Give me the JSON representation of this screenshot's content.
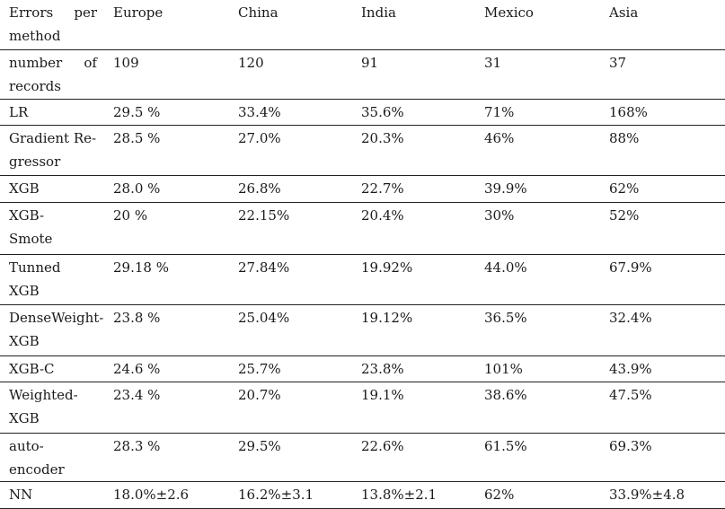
{
  "table": {
    "header": {
      "method_label_line1_left": "Errors",
      "method_label_line1_right": "per",
      "method_label_line2": "method",
      "columns": [
        "Europe",
        "China",
        "India",
        "Mexico",
        "Asia"
      ]
    },
    "records_row": {
      "label_line1_left": "number",
      "label_line1_right": "of",
      "label_line2": "records",
      "values": [
        "109",
        "120",
        "91",
        "31",
        "37"
      ]
    },
    "rows": [
      {
        "method_line1": "LR",
        "method_line2": "",
        "values": [
          "29.5 %",
          "33.4%",
          "35.6%",
          "71%",
          "168%"
        ]
      },
      {
        "method_line1": "Gradient Re-",
        "method_line2": "gressor",
        "values": [
          "28.5 %",
          "27.0%",
          "20.3%",
          "46%",
          "88%"
        ]
      },
      {
        "method_line1": "XGB",
        "method_line2": "",
        "values": [
          "28.0 %",
          "26.8%",
          "22.7%",
          "39.9%",
          "62%"
        ]
      },
      {
        "method_line1": "XGB-",
        "method_line2": "Smote",
        "values": [
          "20 %",
          "22.15%",
          "20.4%",
          "30%",
          "52%"
        ]
      },
      {
        "method_line1": "Tunned",
        "method_line2": "XGB",
        "values": [
          "29.18 %",
          "27.84%",
          "19.92%",
          "44.0%",
          "67.9%"
        ]
      },
      {
        "method_line1": "DenseWeight-",
        "method_line2": "XGB",
        "values": [
          "23.8 %",
          "25.04%",
          "19.12%",
          "36.5%",
          "32.4%"
        ]
      },
      {
        "method_line1": "XGB-C",
        "method_line2": "",
        "values": [
          "24.6 %",
          "25.7%",
          "23.8%",
          "101%",
          "43.9%"
        ]
      },
      {
        "method_line1": "Weighted-",
        "method_line2": "XGB",
        "values": [
          "23.4 %",
          "20.7%",
          "19.1%",
          "38.6%",
          "47.5%"
        ]
      },
      {
        "method_line1": "auto-encoder",
        "method_line2": "",
        "values": [
          "28.3 %",
          "29.5%",
          "22.6%",
          "61.5%",
          "69.3%"
        ]
      },
      {
        "method_line1": "NN",
        "method_line2": "",
        "values": [
          "18.0%±2.6",
          "16.2%±3.1",
          "13.8%±2.1",
          "62%",
          "33.9%±4.8"
        ]
      }
    ]
  }
}
